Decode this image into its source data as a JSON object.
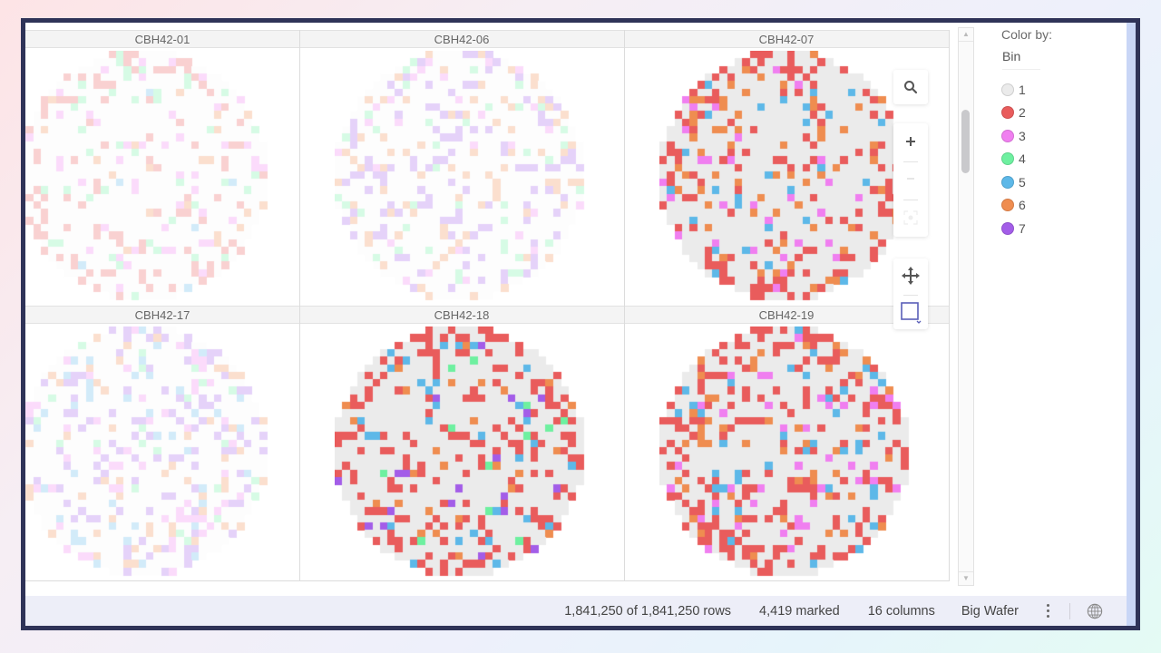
{
  "trellis": {
    "columns_layout": "3x2",
    "panels": [
      {
        "title": "CBH42-01",
        "row": 0,
        "col": 0,
        "faded": true,
        "seed": 11,
        "density": 0.22,
        "weights": {
          "2": 0.35,
          "3": 0.25,
          "4": 0.2,
          "5": 0.05,
          "6": 0.15
        }
      },
      {
        "title": "CBH42-06",
        "row": 0,
        "col": 1,
        "faded": true,
        "seed": 23,
        "density": 0.24,
        "weights": {
          "3": 0.1,
          "7": 0.45,
          "4": 0.15,
          "6": 0.3
        }
      },
      {
        "title": "CBH42-07",
        "row": 0,
        "col": 2,
        "faded": false,
        "seed": 37,
        "density": 0.24,
        "weights": {
          "2": 0.35,
          "3": 0.2,
          "5": 0.15,
          "6": 0.3
        }
      },
      {
        "title": "CBH42-17",
        "row": 1,
        "col": 0,
        "faded": true,
        "seed": 41,
        "density": 0.26,
        "weights": {
          "3": 0.2,
          "7": 0.35,
          "5": 0.15,
          "4": 0.1,
          "6": 0.2
        }
      },
      {
        "title": "CBH42-18",
        "row": 1,
        "col": 1,
        "faded": false,
        "seed": 53,
        "density": 0.22,
        "weights": {
          "2": 0.55,
          "4": 0.12,
          "5": 0.12,
          "6": 0.12,
          "7": 0.09
        }
      },
      {
        "title": "CBH42-19",
        "row": 1,
        "col": 2,
        "faded": false,
        "seed": 67,
        "density": 0.25,
        "weights": {
          "2": 0.5,
          "3": 0.18,
          "5": 0.18,
          "6": 0.14
        }
      }
    ]
  },
  "toolbar": {
    "icons": [
      "search-icon",
      "zoom-in-icon",
      "zoom-out-icon",
      "reset-zoom-icon",
      "pan-icon",
      "rectangle-select-icon"
    ]
  },
  "legend": {
    "title": "Color by:",
    "field": "Bin",
    "items": [
      {
        "label": "1",
        "color": "#ebebeb"
      },
      {
        "label": "2",
        "color": "#e95c5c"
      },
      {
        "label": "3",
        "color": "#f07ff0"
      },
      {
        "label": "4",
        "color": "#6ef0a0"
      },
      {
        "label": "5",
        "color": "#5db8e8"
      },
      {
        "label": "6",
        "color": "#ef8d50"
      },
      {
        "label": "7",
        "color": "#a35de8"
      }
    ]
  },
  "status": {
    "rows": "1,841,250 of 1,841,250 rows",
    "marked": "4,419 marked",
    "columns": "16 columns",
    "data_source": "Big Wafer"
  }
}
